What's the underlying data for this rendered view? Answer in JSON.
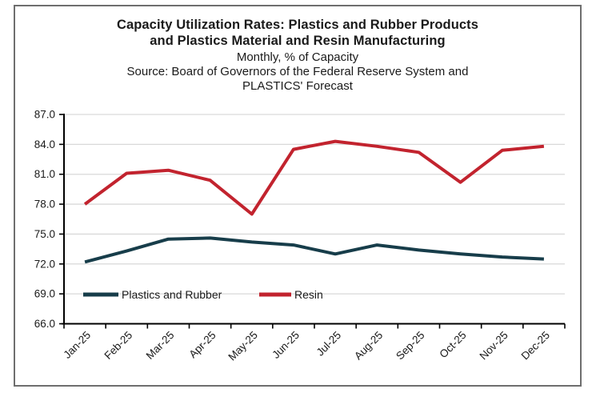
{
  "header": {
    "title_line1": "Capacity Utilization Rates: Plastics and Rubber Products",
    "title_line2": "and Plastics Material and Resin Manufacturing",
    "subtitle": "Monthly, % of Capacity",
    "source_line1": "Source: Board of Governors of the Federal Reserve System and",
    "source_line2": "PLASTICS' Forecast"
  },
  "chart_data": {
    "type": "line",
    "categories": [
      "Jan-25",
      "Feb-25",
      "Mar-25",
      "Apr-25",
      "May-25",
      "Jun-25",
      "Jul-25",
      "Aug-25",
      "Sep-25",
      "Oct-25",
      "Nov-25",
      "Dec-25"
    ],
    "series": [
      {
        "name": "Plastics and Rubber",
        "color": "#173d4a",
        "values": [
          72.2,
          73.3,
          74.5,
          74.6,
          74.2,
          73.9,
          73.0,
          73.9,
          73.4,
          73.0,
          72.7,
          72.5
        ]
      },
      {
        "name": "Resin",
        "color": "#c2232e",
        "values": [
          78.0,
          81.1,
          81.4,
          80.4,
          77.0,
          83.5,
          84.3,
          83.8,
          83.2,
          80.2,
          83.4,
          83.8
        ]
      }
    ],
    "title": "Capacity Utilization Rates: Plastics and Rubber Products and Plastics Material and Resin Manufacturing",
    "xlabel": "",
    "ylabel": "",
    "ylim": [
      66.0,
      87.0
    ],
    "ytick_step": 3.0,
    "ytick_decimals": 1,
    "grid": true,
    "legend_position": "inside-bottom-left"
  },
  "colors": {
    "grid": "#d9d9d9",
    "axis": "#000000",
    "text": "#1a1a1a",
    "frame_border": "#6e6e6e",
    "background": "#ffffff"
  }
}
